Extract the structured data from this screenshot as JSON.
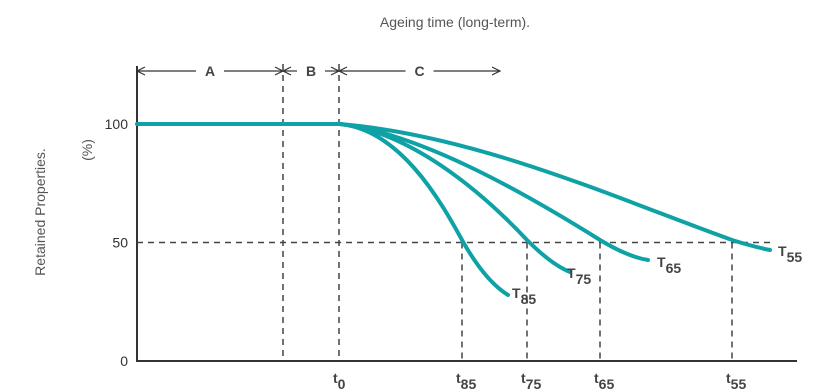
{
  "chart_data": {
    "type": "line",
    "title": "Ageing time (long-term).",
    "ylabel": "Retained Properties.",
    "yunit": "(%)",
    "ylim": [
      0,
      100
    ],
    "yticks": [
      "0",
      "50",
      "100"
    ],
    "xticks": [
      {
        "main": "t",
        "sub": "0"
      },
      {
        "main": "t",
        "sub": "85"
      },
      {
        "main": "t",
        "sub": "75"
      },
      {
        "main": "t",
        "sub": "65"
      },
      {
        "main": "t",
        "sub": "55"
      }
    ],
    "regions": [
      "A",
      "B",
      "C"
    ],
    "reference_level": 50,
    "series": [
      {
        "label_main": "T",
        "label_sub": "85"
      },
      {
        "label_main": "T",
        "label_sub": "75"
      },
      {
        "label_main": "T",
        "label_sub": "65"
      },
      {
        "label_main": "T",
        "label_sub": "55"
      }
    ],
    "colors": {
      "curve": "#0ea2a6",
      "axis": "#333333",
      "dash": "#444444"
    }
  }
}
